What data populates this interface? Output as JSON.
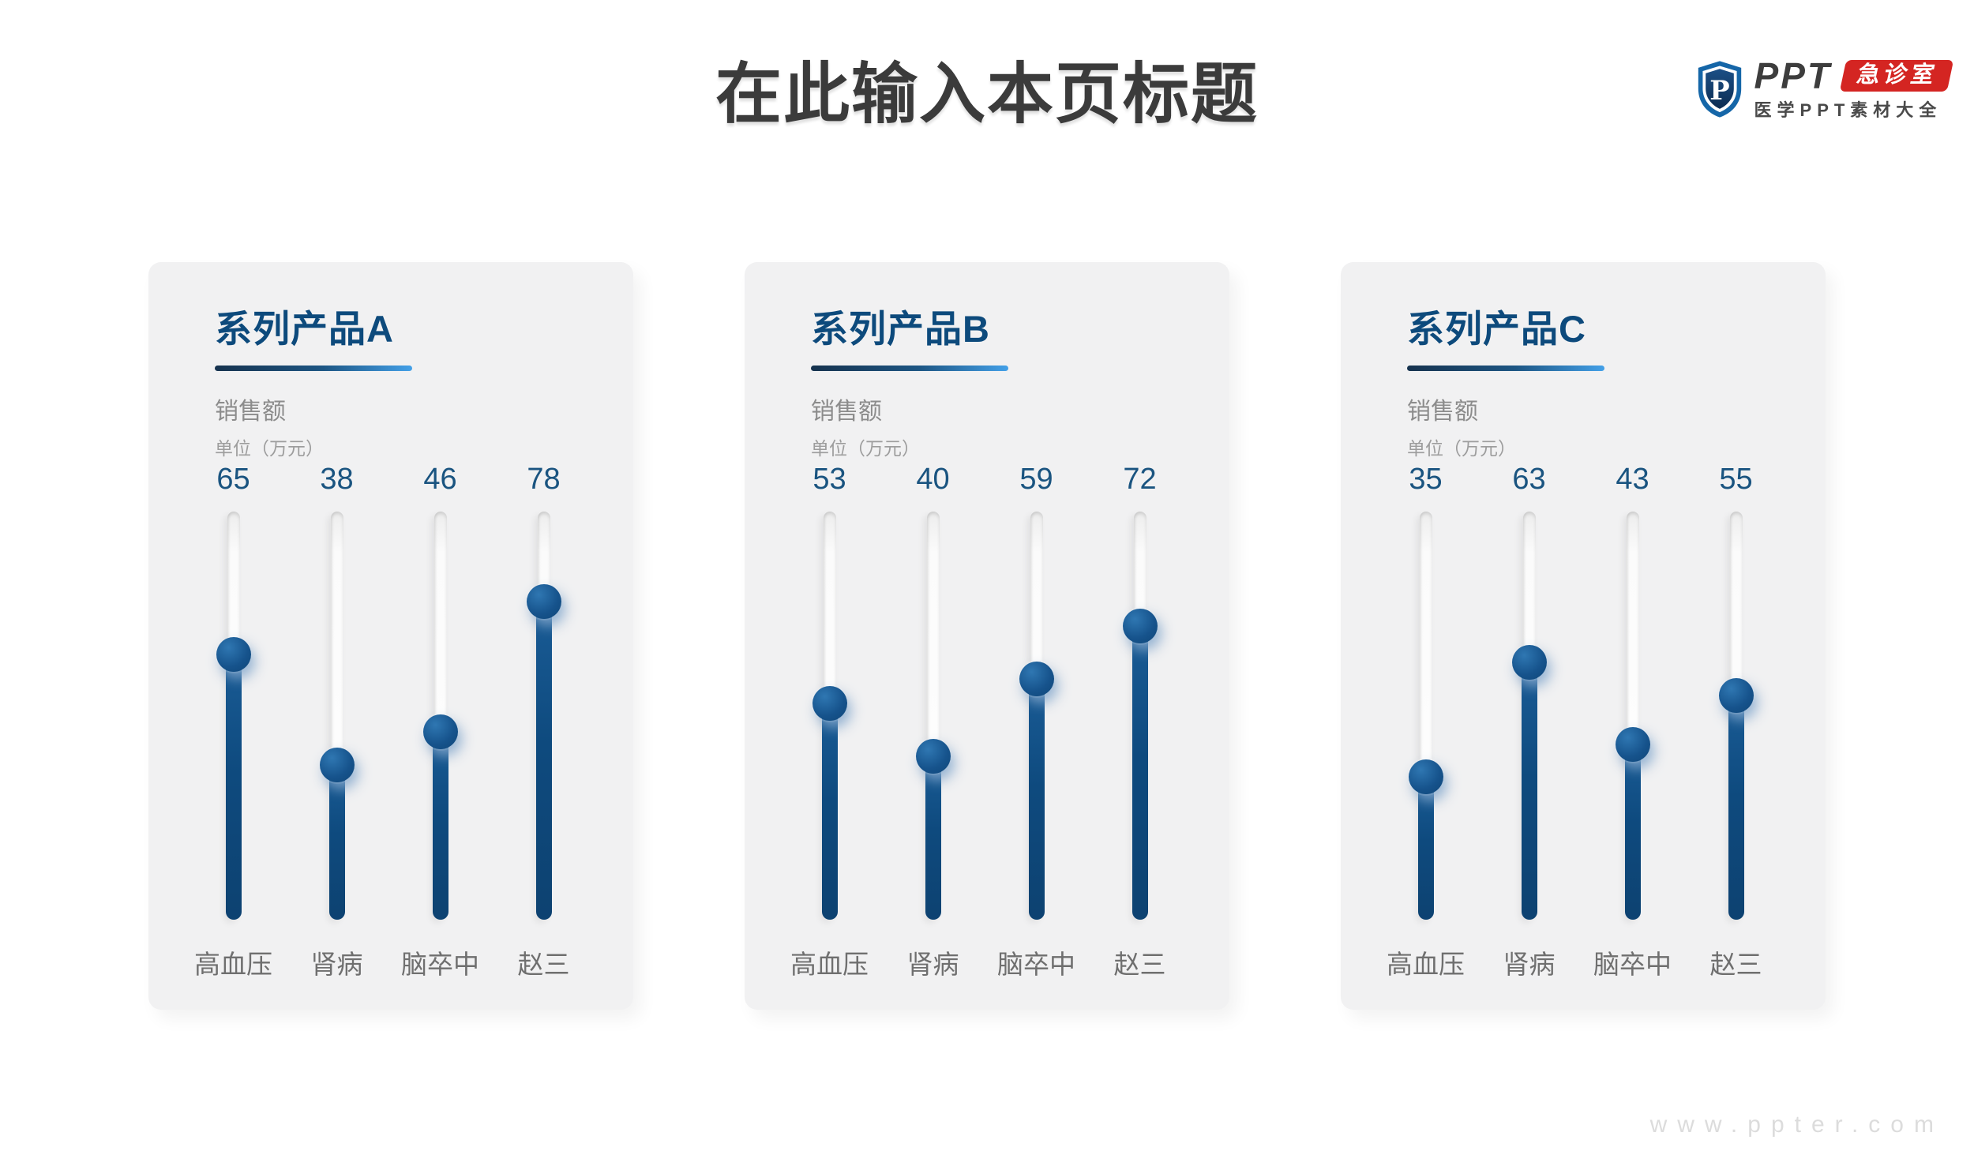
{
  "header": {
    "title": "在此输入本页标题"
  },
  "logo": {
    "shield_letter": "P",
    "brand": "PPT",
    "badge": "急诊室",
    "subtitle": "医学PPT素材大全",
    "brand_color": "#3d3d3d",
    "badge_color": "#d42522",
    "shield_border_blue": "#1566a8",
    "shield_navy": "#12355f"
  },
  "watermark": {
    "text": "www.ppter.com"
  },
  "colors": {
    "panel_bg": "#f1f1f2",
    "series_title": "#0d4a7c",
    "underline_from": "#16324e",
    "underline_to": "#43a0e8",
    "value_text": "#1a5480",
    "category_text": "#6f6f6f",
    "slider_fill": "#0e4a7e",
    "knob": "#16538c"
  },
  "chart_data": [
    {
      "type": "slider",
      "title": "系列产品A",
      "ylabel": "销售额",
      "unit": "单位（万元）",
      "categories": [
        "高血压",
        "肾病",
        "脑卒中",
        "赵三"
      ],
      "values": [
        65,
        38,
        46,
        78
      ],
      "ylim": [
        0,
        100
      ],
      "legend_position": "none",
      "grid": false
    },
    {
      "type": "slider",
      "title": "系列产品B",
      "ylabel": "销售额",
      "unit": "单位（万元）",
      "categories": [
        "高血压",
        "肾病",
        "脑卒中",
        "赵三"
      ],
      "values": [
        53,
        40,
        59,
        72
      ],
      "ylim": [
        0,
        100
      ],
      "legend_position": "none",
      "grid": false
    },
    {
      "type": "slider",
      "title": "系列产品C",
      "ylabel": "销售额",
      "unit": "单位（万元）",
      "categories": [
        "高血压",
        "肾病",
        "脑卒中",
        "赵三"
      ],
      "values": [
        35,
        63,
        43,
        55
      ],
      "ylim": [
        0,
        100
      ],
      "legend_position": "none",
      "grid": false
    }
  ]
}
